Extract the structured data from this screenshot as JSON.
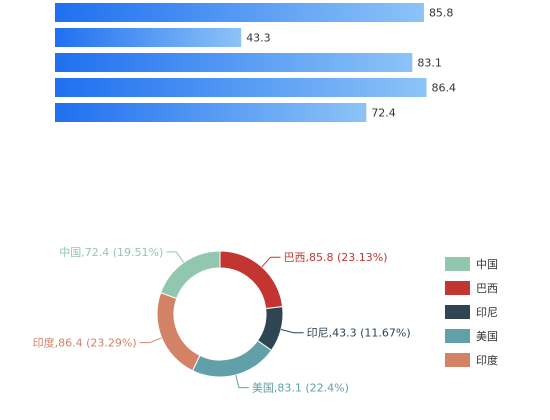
{
  "chart_data": [
    {
      "type": "bar",
      "orientation": "horizontal",
      "values": [
        85.8,
        43.3,
        83.1,
        86.4,
        72.4
      ],
      "xlim": [
        0,
        100
      ],
      "color_gradient": [
        "#1f6ff0",
        "#8cc4f7"
      ]
    },
    {
      "type": "pie",
      "donut": true,
      "slices": [
        {
          "name": "巴西",
          "value": 85.8,
          "percent": "23.13%",
          "label": "巴西,85.8 (23.13%)",
          "color": "#c23531"
        },
        {
          "name": "印尼",
          "value": 43.3,
          "percent": "11.67%",
          "label": "印尼,43.3 (11.67%)",
          "color": "#2f4554"
        },
        {
          "name": "美国",
          "value": 83.1,
          "percent": "22.4%",
          "label": "美国,83.1 (22.4%)",
          "color": "#61a0a8"
        },
        {
          "name": "印度",
          "value": 86.4,
          "percent": "23.29%",
          "label": "印度,86.4 (23.29%)",
          "color": "#d48265"
        },
        {
          "name": "中国",
          "value": 72.4,
          "percent": "19.51%",
          "label": "中国,72.4 (19.51%)",
          "color": "#91c7ae"
        }
      ],
      "legend": {
        "position": "right",
        "items": [
          "中国",
          "巴西",
          "印尼",
          "美国",
          "印度"
        ]
      }
    }
  ]
}
